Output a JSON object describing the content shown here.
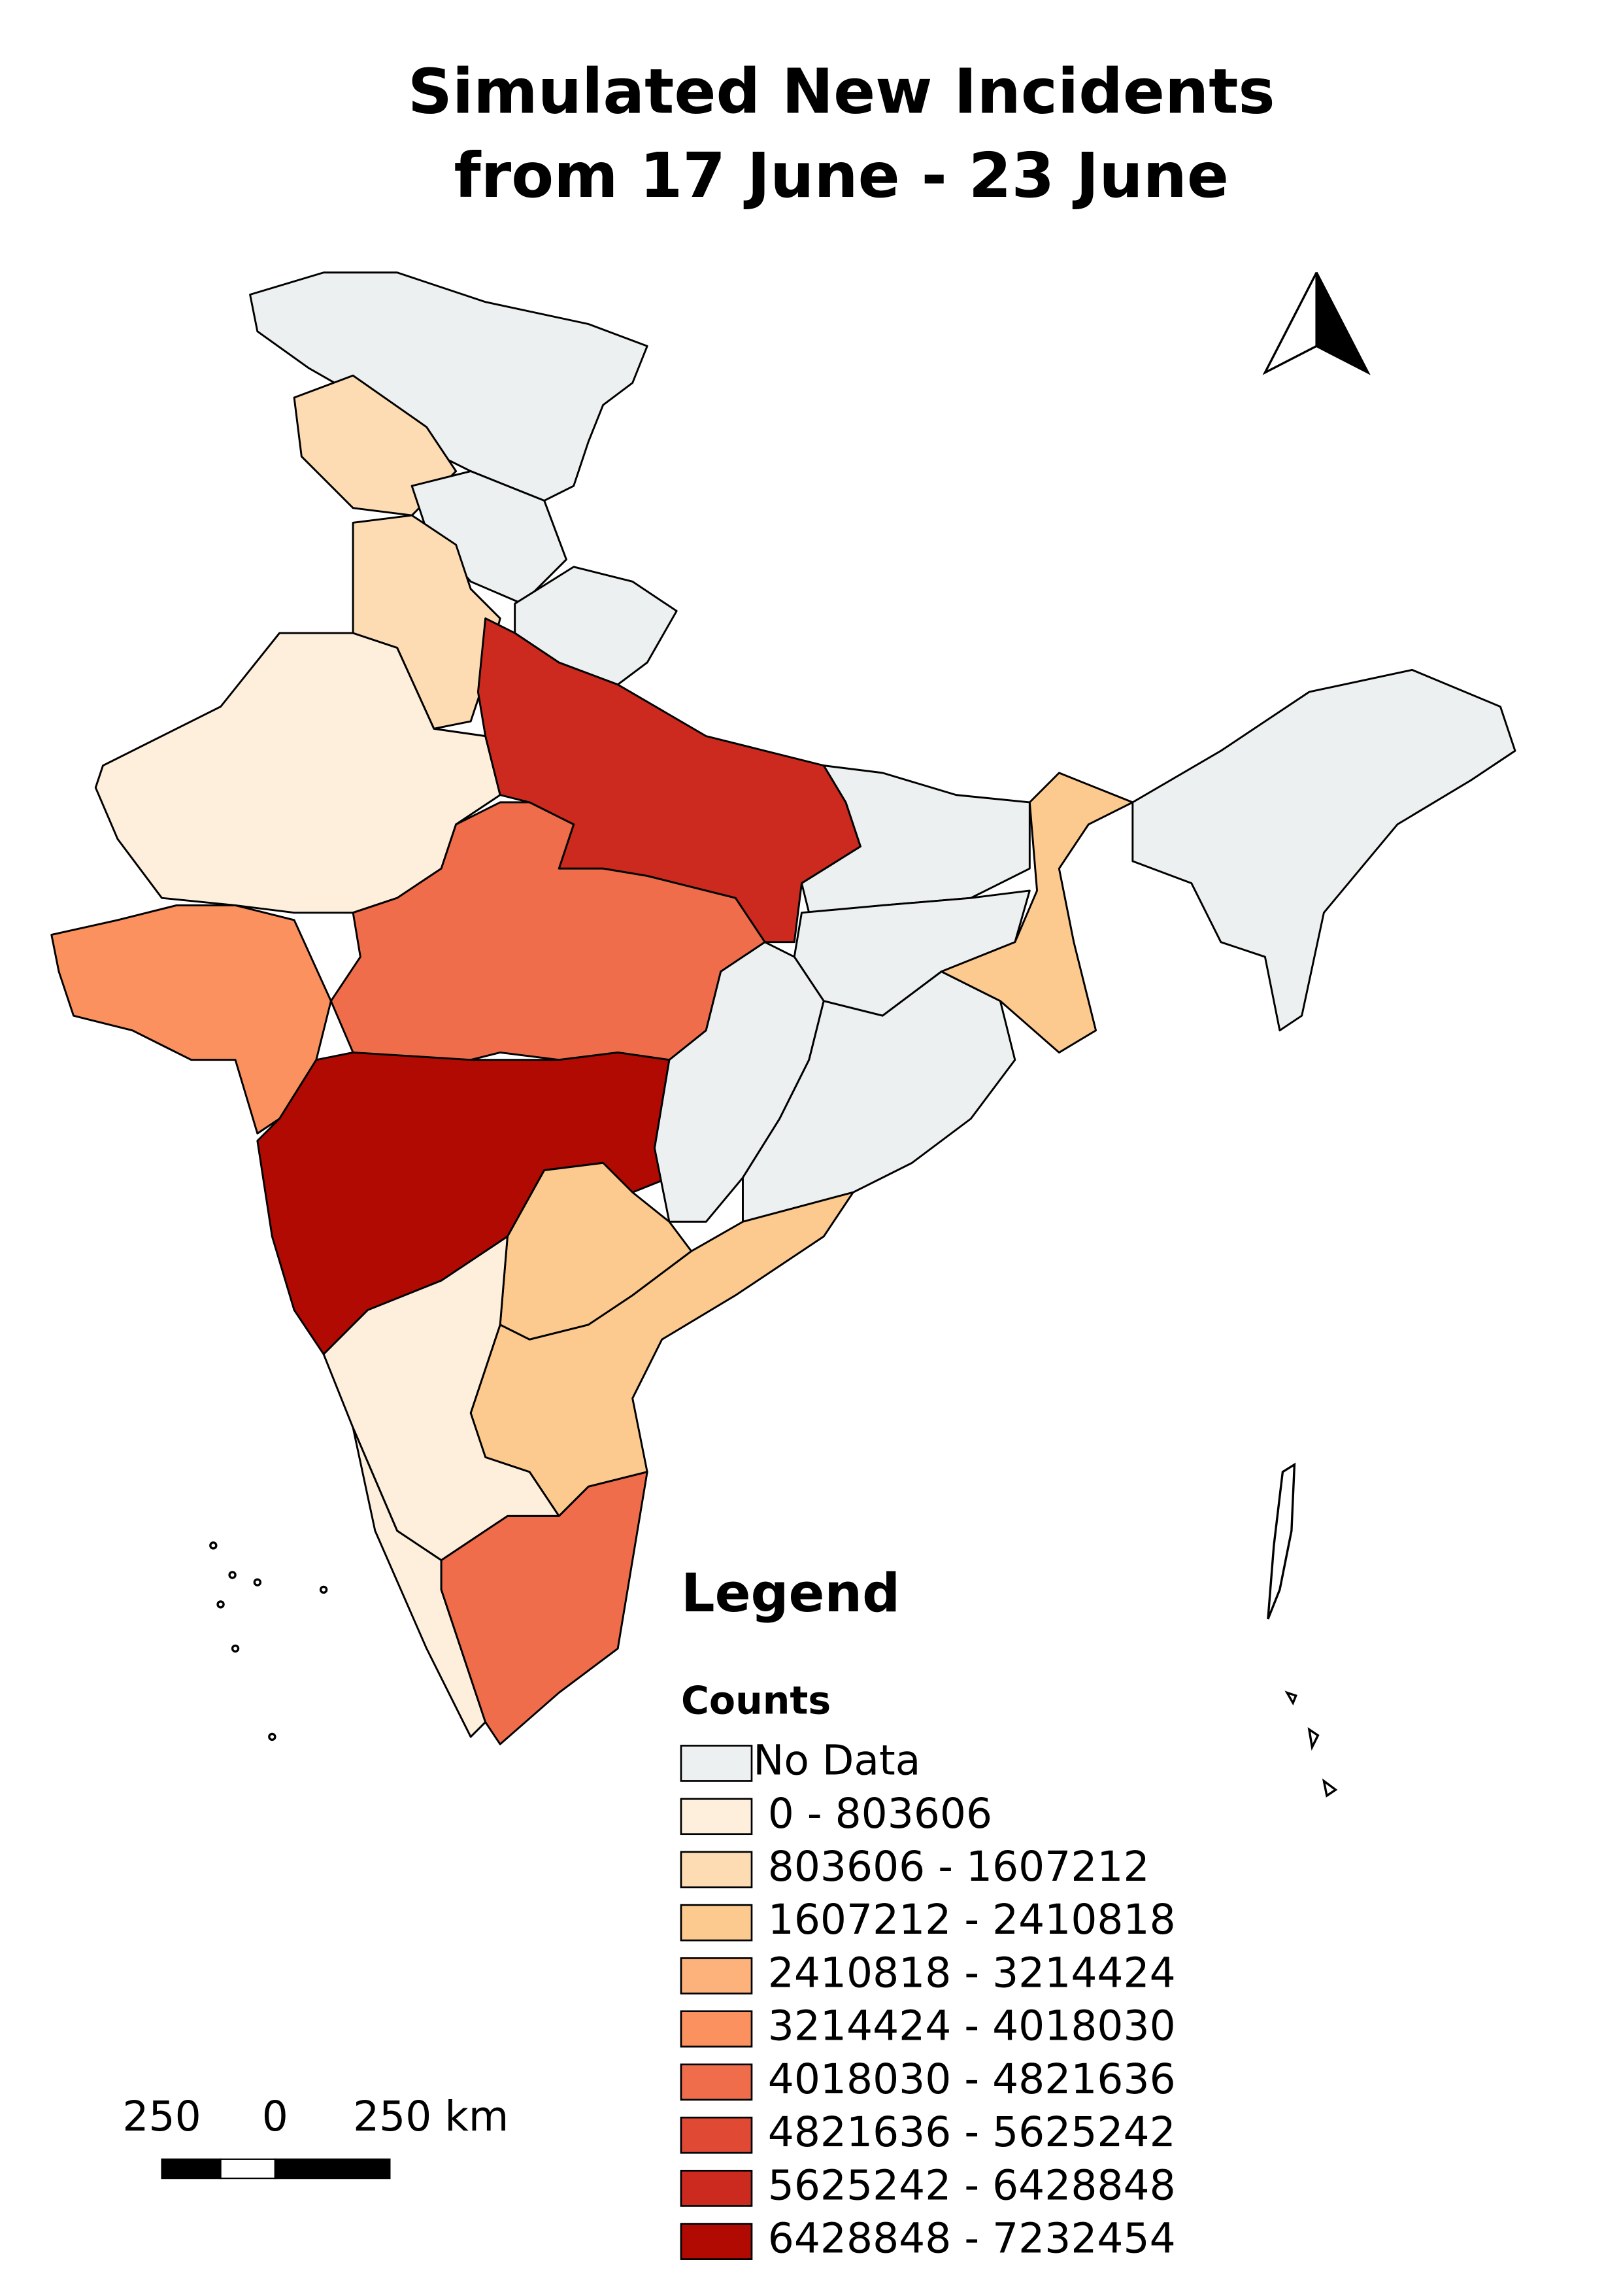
{
  "title": [
    "Simulated New Incidents",
    "from 17 June - 23 June"
  ],
  "legend": {
    "title": "Legend",
    "subtitle": "Counts",
    "items": [
      {
        "label": "No Data",
        "color": "#edf0f0"
      },
      {
        "label": "0 - 803606",
        "color": "#fdefdc"
      },
      {
        "label": "803606 - 1607212",
        "color": "#fddcb4"
      },
      {
        "label": "1607212 - 2410818",
        "color": "#fcc98e"
      },
      {
        "label": "2410818 - 3214424",
        "color": "#fcb27a"
      },
      {
        "label": "3214424 - 4018030",
        "color": "#fa915e"
      },
      {
        "label": "4018030 - 4821636",
        "color": "#f06d4b"
      },
      {
        "label": "4821636 - 5625242",
        "color": "#e04a35"
      },
      {
        "label": "5625242 - 6428848",
        "color": "#cc2a1e"
      },
      {
        "label": "6428848 - 7232454",
        "color": "#b10a03"
      }
    ]
  },
  "scale_bar": {
    "labels": [
      "250",
      "0",
      "250 km"
    ]
  }
}
